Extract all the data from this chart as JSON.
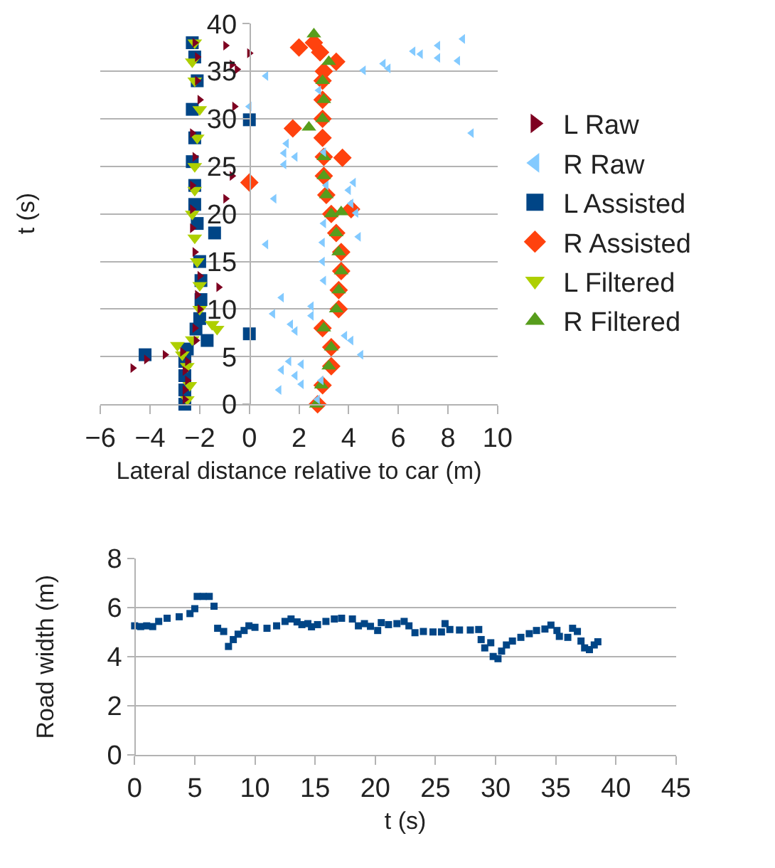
{
  "chart_data": [
    {
      "type": "scatter",
      "xlabel": "Lateral distance relative to car (m)",
      "ylabel": "t (s)",
      "xlim": [
        -6,
        10
      ],
      "xticks": [
        -6,
        -4,
        -2,
        0,
        2,
        4,
        6,
        8,
        10
      ],
      "ylim": [
        0,
        40
      ],
      "yticks": [
        0,
        5,
        10,
        15,
        20,
        25,
        30,
        35,
        40
      ],
      "grid": "y",
      "legend": "right",
      "series": [
        {
          "name": "L Raw",
          "color": "#7e0021",
          "marker": "triangle-right",
          "x": [
            -2.6,
            -2.6,
            -2.5,
            -2.6,
            -2.5,
            -4.7,
            -4.15,
            -3.4,
            -2.7,
            -2.15,
            -2.2,
            -2.0,
            -2.1,
            -1.24,
            -2.0,
            -2.2,
            -2.3,
            -0.96,
            -2.3,
            -2.3,
            -0.7,
            -2.2,
            -2.3,
            -0.6,
            -2.0,
            -2.1,
            -0.5,
            -0.7,
            -2.1,
            0,
            -0.96,
            -2.2
          ],
          "values": [
            0.5,
            1.5,
            2.5,
            3.5,
            4.5,
            3.8,
            4.7,
            5.2,
            5.5,
            6.7,
            8,
            10,
            11.5,
            12.3,
            13.5,
            16,
            18.5,
            21.6,
            20.5,
            23,
            24,
            26,
            28.5,
            31.3,
            32,
            34,
            35.2,
            35.7,
            36.5,
            36.9,
            37.7,
            38
          ]
        },
        {
          "name": "R Raw",
          "color": "#83caff",
          "marker": "triangle-left",
          "x": [
            8.6,
            7.6,
            6.6,
            6.9,
            7.6,
            8.4,
            5.4,
            5.6,
            4.6,
            0.67,
            0,
            8.95,
            1.5,
            1.4,
            1.85,
            1.4,
            1.0,
            4.2,
            4.0,
            4.1,
            4.3,
            4.4,
            0.67,
            1.3,
            0.95,
            2.5,
            2.5,
            1.67,
            1.85,
            3.85,
            4.1,
            4.5,
            1.6,
            2.1,
            1.3,
            1.85,
            2.1,
            1.2,
            2.75,
            2.9,
            3.0,
            2.95,
            2.95,
            3.0,
            3.1,
            3.0,
            2.8
          ],
          "values": [
            38.4,
            37.7,
            37.1,
            36.8,
            36.4,
            36.1,
            35.8,
            35.3,
            35.1,
            34.5,
            31.3,
            28.5,
            27.4,
            26.4,
            26,
            25.2,
            21.6,
            23.3,
            22.5,
            21.1,
            20.1,
            17.6,
            16.8,
            11.2,
            9.5,
            10.3,
            9.3,
            8.4,
            7.7,
            7.2,
            6.7,
            5.2,
            4.5,
            4.2,
            3.6,
            3.0,
            2.1,
            1.5,
            0.5,
            2.5,
            13,
            15,
            17,
            19,
            23,
            26.5,
            33
          ]
        },
        {
          "name": "L Assisted",
          "color": "#004586",
          "marker": "square",
          "x": [
            -2.6,
            -2.6,
            -2.6,
            -2.6,
            -4.2,
            -2.5,
            -1.7,
            -2.15,
            -2.0,
            -1.95,
            -1.95,
            -2.0,
            -1.4,
            -2.1,
            -2.2,
            -2.2,
            -2.3,
            -2.2,
            0,
            -2.3,
            -2.1,
            -2.2,
            -2.3,
            0
          ],
          "values": [
            0,
            1.5,
            3,
            4.5,
            5.2,
            5.8,
            6.7,
            7.9,
            9,
            11,
            13,
            15,
            18,
            19,
            21,
            23,
            25.5,
            28,
            29.9,
            31,
            34,
            36.5,
            38,
            7.4
          ]
        },
        {
          "name": "R Assisted",
          "color": "#ff420e",
          "marker": "diamond",
          "x": [
            2.75,
            2.95,
            3.3,
            3.3,
            2.95,
            3.6,
            3.6,
            3.7,
            3.7,
            3.5,
            3.3,
            3.1,
            3.0,
            3.0,
            2.95,
            2.95,
            2.95,
            2.95,
            3.0,
            3.5,
            2.85,
            2.6,
            2.0,
            0,
            3.75,
            4.1,
            1.75
          ],
          "values": [
            0,
            2,
            4,
            6,
            8,
            10,
            12,
            14,
            16,
            18,
            20,
            22,
            24,
            26,
            28,
            30,
            32,
            34,
            35,
            36,
            37,
            38,
            37.5,
            23.3,
            25.9,
            20.5,
            29.0
          ]
        },
        {
          "name": "L Filtered",
          "color": "#aecf00",
          "marker": "triangle-down",
          "x": [
            -2.5,
            -2.4,
            -2.5,
            -2.9,
            -2.7,
            -2.3,
            -1.5,
            -1.3,
            -2.0,
            -2.0,
            -2.1,
            -2.2,
            -2.3,
            -2.2,
            -2.2,
            -2.1,
            -2.0,
            -2.2,
            -2.3,
            -2.2
          ],
          "values": [
            0.5,
            2,
            4,
            6.2,
            5.2,
            6.8,
            8.4,
            7.9,
            10,
            12.5,
            15,
            17.5,
            20,
            22.5,
            25,
            28,
            31,
            34,
            36,
            38
          ]
        },
        {
          "name": "R Filtered",
          "color": "#579d1c",
          "marker": "triangle",
          "x": [
            2.7,
            2.9,
            3.2,
            3.3,
            3.0,
            3.5,
            3.6,
            3.7,
            3.6,
            3.5,
            3.3,
            3.1,
            3.0,
            3.0,
            2.4,
            2.95,
            3.0,
            2.95,
            3.2,
            2.6,
            3.7
          ],
          "values": [
            0,
            2,
            4,
            6,
            8,
            10,
            12,
            14,
            16,
            18,
            20,
            22,
            24,
            26,
            29.1,
            30,
            32,
            34,
            36,
            38.9,
            20.2
          ]
        }
      ]
    },
    {
      "type": "scatter",
      "xlabel": "t (s)",
      "ylabel": "Road width (m)",
      "xlim": [
        0,
        45
      ],
      "xticks": [
        0,
        5,
        10,
        15,
        20,
        25,
        30,
        35,
        40,
        45
      ],
      "ylim": [
        0,
        8
      ],
      "yticks": [
        0,
        2,
        4,
        6,
        8
      ],
      "grid": "y",
      "legend": false,
      "marker": "square",
      "series": [
        {
          "color": "#004586",
          "x": [
            0,
            0.5,
            1,
            1.5,
            2.0,
            2.7,
            3.7,
            4.6,
            5.0,
            5.2,
            5.7,
            6.2,
            6.6,
            6.9,
            7.4,
            7.8,
            8.2,
            8.6,
            9.1,
            9.5,
            10.0,
            11.0,
            11.8,
            12.5,
            13.0,
            13.5,
            13.9,
            14.4,
            14.7,
            15.2,
            15.9,
            16.6,
            17.2,
            18.1,
            18.6,
            19.1,
            19.6,
            20.2,
            20.5,
            21.1,
            21.8,
            22.4,
            22.8,
            23.3,
            24.0,
            24.8,
            25.5,
            25.8,
            26.2,
            27.0,
            27.9,
            28.6,
            28.8,
            29.1,
            29.6,
            29.8,
            30.2,
            30.5,
            30.9,
            31.4,
            32.1,
            32.8,
            33.4,
            34.1,
            34.6,
            35.1,
            35.3,
            36.0,
            36.4,
            36.8,
            37.1,
            37.4,
            37.8,
            38.2,
            38.5
          ],
          "values": [
            5.25,
            5.22,
            5.25,
            5.22,
            5.43,
            5.56,
            5.62,
            5.75,
            5.95,
            6.45,
            6.45,
            6.45,
            6.05,
            5.15,
            5.02,
            4.41,
            4.69,
            4.91,
            5.06,
            5.25,
            5.19,
            5.15,
            5.25,
            5.43,
            5.53,
            5.41,
            5.3,
            5.34,
            5.21,
            5.3,
            5.43,
            5.53,
            5.56,
            5.53,
            5.25,
            5.34,
            5.23,
            5.06,
            5.38,
            5.3,
            5.34,
            5.43,
            5.25,
            4.97,
            5.02,
            5.0,
            5.0,
            5.34,
            5.1,
            5.08,
            5.08,
            5.1,
            4.69,
            4.35,
            4.56,
            4.0,
            3.91,
            4.22,
            4.47,
            4.63,
            4.78,
            4.93,
            5.06,
            5.12,
            5.28,
            5.06,
            4.82,
            4.78,
            5.15,
            5.02,
            4.63,
            4.35,
            4.28,
            4.47,
            4.6
          ]
        }
      ]
    }
  ]
}
